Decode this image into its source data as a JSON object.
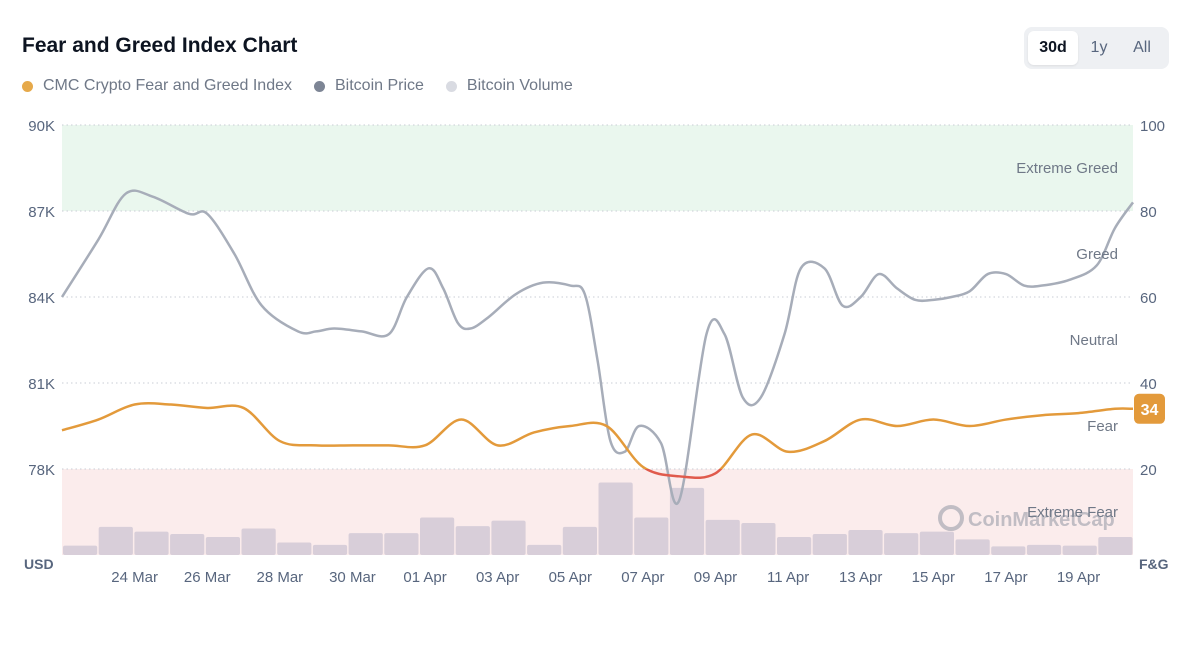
{
  "header": {
    "title": "Fear and Greed Index Chart"
  },
  "tabs": [
    {
      "label": "30d",
      "active": true
    },
    {
      "label": "1y",
      "active": false
    },
    {
      "label": "All",
      "active": false
    }
  ],
  "legend": [
    {
      "label": "CMC Crypto Fear and Greed Index",
      "color": "#e6a94a"
    },
    {
      "label": "Bitcoin Price",
      "color": "#7d8595"
    },
    {
      "label": "Bitcoin Volume",
      "color": "#d9dbe2"
    }
  ],
  "watermark": "CoinMarketCap",
  "chart_data": {
    "type": "line",
    "x_tick_labels": [
      "24 Mar",
      "26 Mar",
      "28 Mar",
      "30 Mar",
      "01 Apr",
      "03 Apr",
      "05 Apr",
      "07 Apr",
      "09 Apr",
      "11 Apr",
      "13 Apr",
      "15 Apr",
      "17 Apr",
      "19 Apr"
    ],
    "y_left": {
      "label": "USD",
      "ticks": [
        "90K",
        "87K",
        "84K",
        "81K",
        "78K"
      ],
      "range": [
        75000,
        90000
      ]
    },
    "y_right": {
      "label": "F&G",
      "ticks": [
        "100",
        "80",
        "60",
        "40",
        "20"
      ],
      "range": [
        0,
        100
      ]
    },
    "zones": [
      {
        "label": "Extreme Greed",
        "from": 80,
        "to": 100,
        "color": "#eaf7ee"
      },
      {
        "label": "Greed",
        "from": 60,
        "to": 80
      },
      {
        "label": "Neutral",
        "from": 40,
        "to": 60
      },
      {
        "label": "Fear",
        "from": 20,
        "to": 40
      },
      {
        "label": "Extreme Fear",
        "from": 0,
        "to": 20,
        "color": "#fbecec"
      }
    ],
    "current_value_badge": "34",
    "grid": true,
    "series": [
      {
        "name": "Bitcoin Price",
        "axis": "left",
        "color": "#a7adb9",
        "x": [
          0,
          2,
          3.5,
          5,
          7,
          8,
          9.5,
          11,
          13,
          14,
          15,
          16.5,
          18,
          19,
          20.2,
          21,
          21.8,
          22.5,
          23.5,
          25,
          26.5,
          28,
          28.8,
          29.5,
          30.2,
          31,
          31.8,
          33,
          34,
          35.5,
          36.5,
          37.5,
          38.5,
          39.8,
          40.7,
          42,
          43,
          44,
          45,
          46,
          47,
          48,
          49,
          50,
          51,
          52,
          53,
          54,
          55.5,
          57,
          58,
          59
        ],
        "values": [
          84000,
          86000,
          87600,
          87500,
          86900,
          86900,
          85500,
          83700,
          82800,
          82800,
          82900,
          82800,
          82700,
          84000,
          85000,
          84300,
          83100,
          82900,
          83300,
          84100,
          84500,
          84400,
          84100,
          81800,
          79000,
          78600,
          79500,
          78900,
          76900,
          82700,
          82700,
          80500,
          80500,
          82700,
          85000,
          85000,
          83700,
          84000,
          84800,
          84300,
          83900,
          83900,
          84000,
          84200,
          84800,
          84800,
          84400,
          84400,
          84600,
          85100,
          86400,
          87300
        ]
      },
      {
        "name": "CMC Crypto Fear and Greed Index",
        "axis": "right",
        "color": "#e39a3b",
        "x": [
          0,
          2,
          4,
          6,
          8,
          10,
          12,
          14,
          16,
          18,
          20,
          22,
          24,
          26,
          28,
          30,
          32,
          34,
          36,
          38,
          40,
          42,
          44,
          46,
          48,
          50,
          52,
          54,
          56,
          58,
          59
        ],
        "values": [
          29,
          31.5,
          35,
          35,
          34.2,
          34.2,
          26.5,
          25.5,
          25.5,
          25.5,
          25.5,
          31.5,
          25.5,
          28.5,
          30,
          30,
          20.5,
          18.3,
          19,
          28,
          24,
          26.5,
          31.5,
          30,
          31.5,
          30,
          31.5,
          32.5,
          33,
          34,
          34
        ],
        "extreme_fear_color": "#e05a4c"
      },
      {
        "name": "Bitcoin Volume",
        "axis": "none",
        "color": "#d8ced9",
        "bars_relative": [
          0.12,
          0.36,
          0.3,
          0.27,
          0.23,
          0.34,
          0.16,
          0.13,
          0.28,
          0.28,
          0.48,
          0.37,
          0.44,
          0.13,
          0.36,
          0.93,
          0.48,
          0.86,
          0.45,
          0.41,
          0.23,
          0.27,
          0.32,
          0.28,
          0.3,
          0.2,
          0.11,
          0.13,
          0.12,
          0.23
        ]
      }
    ]
  }
}
